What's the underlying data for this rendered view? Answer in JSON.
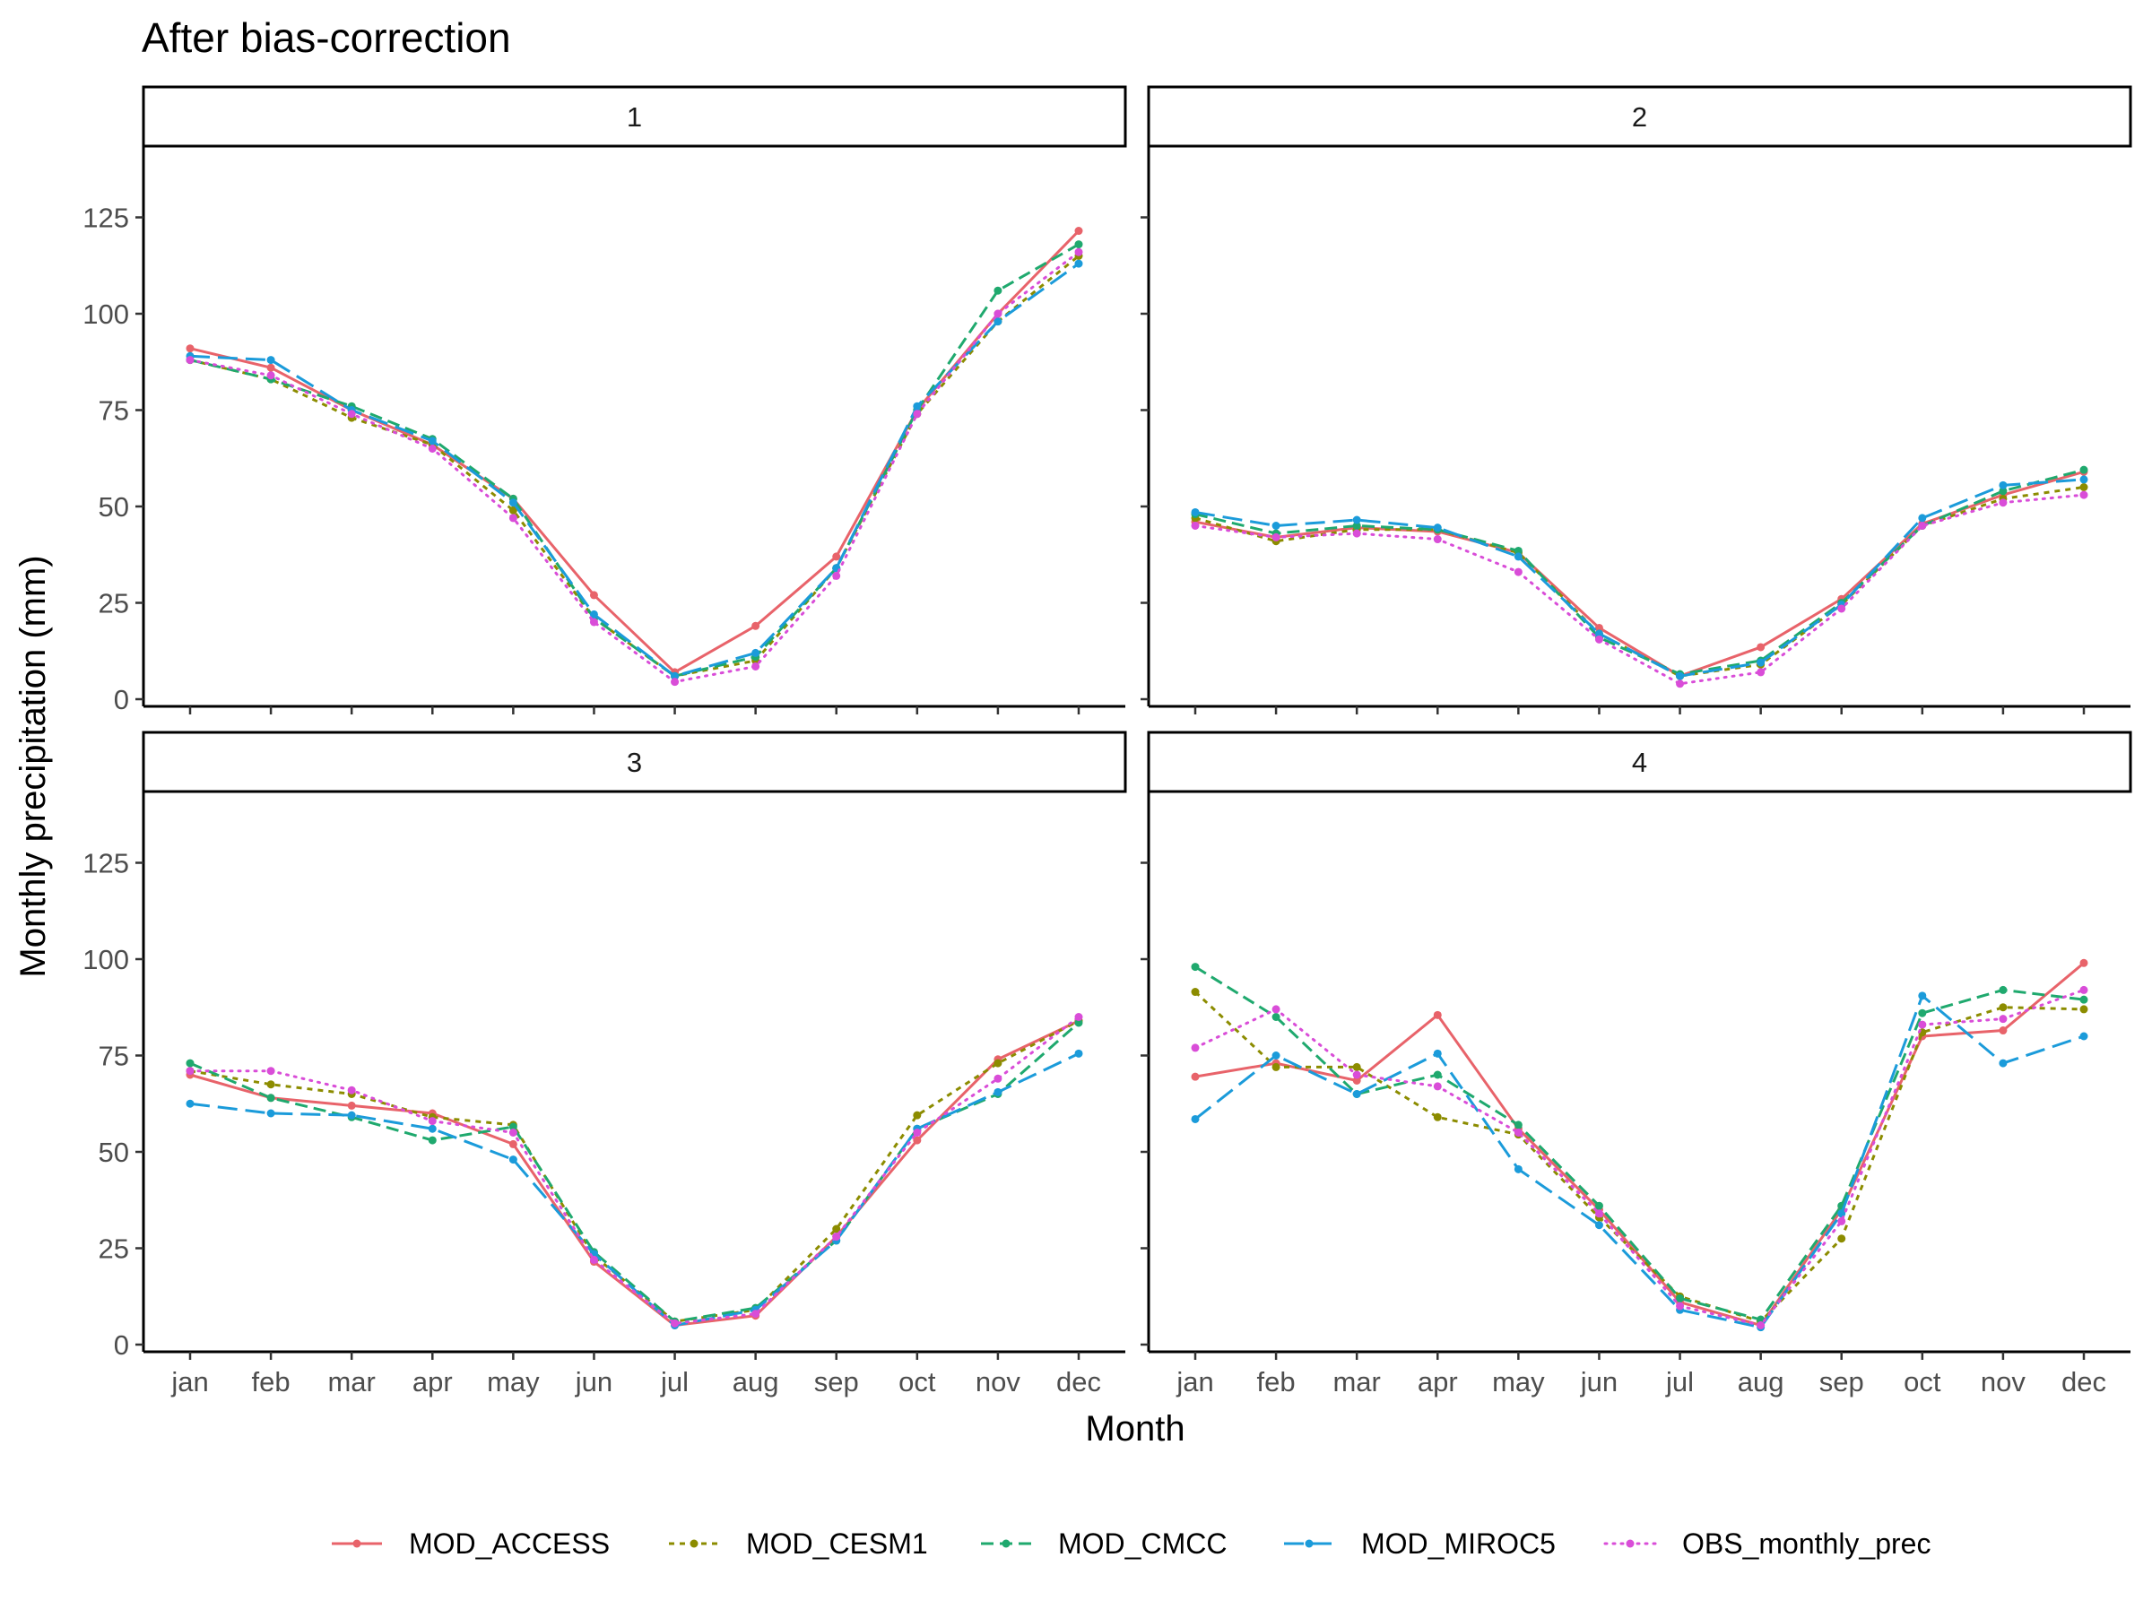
{
  "chart_data": {
    "type": "line",
    "title": "After bias-correction",
    "xlabel": "Month",
    "ylabel": "Monthly precipitation (mm)",
    "ylim": [
      0,
      140
    ],
    "yticks": [
      0,
      25,
      50,
      75,
      100,
      125
    ],
    "categories": [
      "jan",
      "feb",
      "mar",
      "apr",
      "may",
      "jun",
      "jul",
      "aug",
      "sep",
      "oct",
      "nov",
      "dec"
    ],
    "grid": false,
    "legend_position": "bottom",
    "series_styles": [
      {
        "name": "MOD_ACCESS",
        "color": "#E8636A",
        "dash": "solid"
      },
      {
        "name": "MOD_CESM1",
        "color": "#8C8C00",
        "dash": "dotted"
      },
      {
        "name": "MOD_CMCC",
        "color": "#1FA96E",
        "dash": "dashed"
      },
      {
        "name": "MOD_MIROC5",
        "color": "#1B9BDA",
        "dash": "longdash"
      },
      {
        "name": "OBS_monthly_prec",
        "color": "#D94DD8",
        "dash": "dot"
      }
    ],
    "panels": [
      {
        "label": "1",
        "series": [
          {
            "name": "MOD_ACCESS",
            "values": [
              91,
              86,
              75,
              66,
              52,
              27,
              7,
              19,
              37,
              75,
              100,
              121.5
            ]
          },
          {
            "name": "MOD_CESM1",
            "values": [
              88,
              83,
              73,
              66,
              49,
              21,
              6,
              10,
              34,
              74,
              98,
              115
            ]
          },
          {
            "name": "MOD_CMCC",
            "values": [
              88,
              83,
              76,
              67.5,
              52,
              21,
              6,
              11,
              34,
              75,
              106,
              118
            ]
          },
          {
            "name": "MOD_MIROC5",
            "values": [
              89,
              88,
              75,
              67,
              51,
              22,
              6,
              12,
              34,
              76,
              98,
              113
            ]
          },
          {
            "name": "OBS_monthly_prec",
            "values": [
              88,
              84,
              74,
              65,
              47,
              20,
              4.5,
              8.5,
              32,
              74,
              100,
              116
            ]
          }
        ]
      },
      {
        "label": "2",
        "series": [
          {
            "name": "MOD_ACCESS",
            "values": [
              46,
              42,
              44.5,
              43.5,
              38,
              18.5,
              6,
              13.5,
              26,
              45.5,
              53,
              59
            ]
          },
          {
            "name": "MOD_CESM1",
            "values": [
              47,
              41,
              44,
              44,
              38,
              17,
              6,
              9,
              24.5,
              45,
              52,
              55
            ]
          },
          {
            "name": "MOD_CMCC",
            "values": [
              48,
              43,
              45,
              44,
              38.5,
              16,
              6.5,
              10,
              25,
              45,
              54,
              59.5
            ]
          },
          {
            "name": "MOD_MIROC5",
            "values": [
              48.5,
              45,
              46.5,
              44.5,
              37,
              17,
              6,
              9.5,
              24.5,
              47,
              55.5,
              57
            ]
          },
          {
            "name": "OBS_monthly_prec",
            "values": [
              45,
              42,
              43,
              41.5,
              33,
              15.5,
              4,
              7,
              23.5,
              45,
              51,
              53
            ]
          }
        ]
      },
      {
        "label": "3",
        "series": [
          {
            "name": "MOD_ACCESS",
            "values": [
              70,
              64,
              62,
              60,
              52,
              21.5,
              5,
              7.5,
              28,
              53,
              74,
              84
            ]
          },
          {
            "name": "MOD_CESM1",
            "values": [
              71,
              67.5,
              65,
              59,
              57,
              23,
              6,
              9,
              30,
              59.5,
              73,
              84
            ]
          },
          {
            "name": "MOD_CMCC",
            "values": [
              73,
              64,
              59,
              53,
              56.5,
              24,
              6,
              9.5,
              27,
              56,
              65,
              83.5
            ]
          },
          {
            "name": "MOD_MIROC5",
            "values": [
              62.5,
              60,
              59.5,
              56,
              48,
              23.5,
              5,
              9,
              27,
              56,
              65.5,
              75.5
            ]
          },
          {
            "name": "OBS_monthly_prec",
            "values": [
              71,
              71,
              66,
              58,
              55,
              22,
              5.5,
              8,
              28,
              55,
              69,
              85
            ]
          }
        ]
      },
      {
        "label": "4",
        "series": [
          {
            "name": "MOD_ACCESS",
            "values": [
              69.5,
              73,
              68.5,
              85.5,
              56,
              35,
              11,
              5,
              35,
              80,
              81.5,
              99
            ]
          },
          {
            "name": "MOD_CESM1",
            "values": [
              91.5,
              72,
              72,
              59,
              54.5,
              33,
              12.5,
              6,
              27.5,
              81,
              87.5,
              87
            ]
          },
          {
            "name": "MOD_CMCC",
            "values": [
              98,
              85,
              65,
              70,
              57,
              36,
              12,
              6.5,
              36,
              86,
              92,
              89.5
            ]
          },
          {
            "name": "MOD_MIROC5",
            "values": [
              58.5,
              75,
              65,
              75.5,
              45.5,
              31,
              9,
              4.5,
              34,
              90.5,
              73,
              80
            ]
          },
          {
            "name": "OBS_monthly_prec",
            "values": [
              77,
              87,
              70,
              67,
              55,
              34,
              10,
              5,
              32,
              83,
              84.5,
              92
            ]
          }
        ]
      }
    ]
  }
}
